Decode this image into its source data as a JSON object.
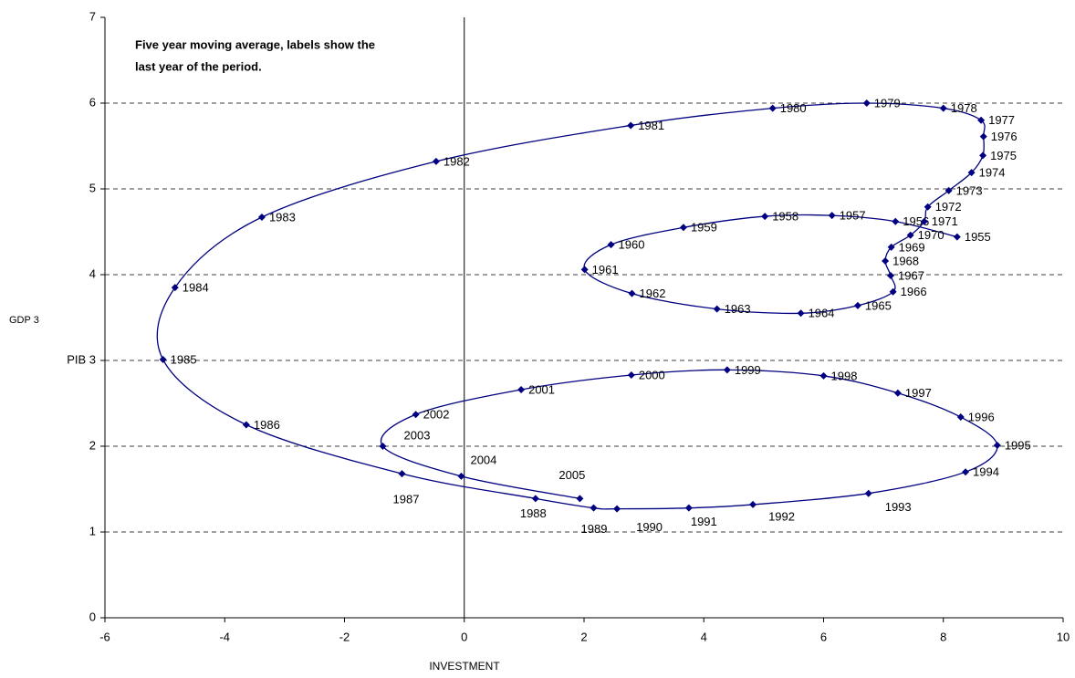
{
  "chart_data": {
    "type": "scatter-line",
    "annotation_lines": [
      "Five year moving average, labels show the",
      "last year of the period."
    ],
    "x_label": "INVESTMENT",
    "y_label": "GDP   3",
    "color": "#000080",
    "grid": true,
    "y_axis_crosses": 0,
    "xlim": [
      -6,
      10
    ],
    "xticks": [
      -6,
      -4,
      -2,
      0,
      2,
      4,
      6,
      8,
      10
    ],
    "ylim": [
      0,
      7
    ],
    "yticks": [
      0,
      1,
      2,
      {
        "value": 3,
        "label": "PIB 3"
      },
      4,
      5,
      6,
      7
    ],
    "labels": [
      "1955",
      "1956",
      "1957",
      "1958",
      "1959",
      "1960",
      "1961",
      "1962",
      "1963",
      "1964",
      "1965",
      "1966",
      "1967",
      "1968",
      "1969",
      "1970",
      "1971",
      "1972",
      "1973",
      "1974",
      "1975",
      "1976",
      "1977",
      "1978",
      "1979",
      "1980",
      "1981",
      "1982",
      "1983",
      "1984",
      "1985",
      "1986",
      "1987",
      "1988",
      "1989",
      "1990",
      "1991",
      "1992",
      "1993",
      "1994",
      "1995",
      "1996",
      "1997",
      "1998",
      "1999",
      "2000",
      "2001",
      "2002",
      "2003",
      "2004",
      "2005"
    ],
    "x": [
      8.23,
      7.2,
      6.14,
      5.02,
      3.66,
      2.45,
      2.01,
      2.8,
      4.22,
      5.62,
      6.57,
      7.16,
      7.12,
      7.03,
      7.13,
      7.45,
      7.68,
      7.74,
      8.09,
      8.47,
      8.66,
      8.67,
      8.63,
      8.0,
      6.72,
      5.15,
      2.78,
      -0.47,
      -3.38,
      -4.83,
      -5.03,
      -3.64,
      -1.04,
      1.19,
      2.16,
      2.55,
      3.75,
      4.82,
      6.75,
      8.37,
      8.9,
      8.29,
      7.24,
      6.0,
      4.39,
      2.79,
      0.95,
      -0.81,
      -1.36,
      -0.05,
      1.93
    ],
    "y": [
      4.44,
      4.62,
      4.69,
      4.68,
      4.55,
      4.35,
      4.06,
      3.78,
      3.6,
      3.55,
      3.64,
      3.8,
      3.99,
      4.16,
      4.32,
      4.46,
      4.62,
      4.79,
      4.98,
      5.19,
      5.39,
      5.61,
      5.8,
      5.94,
      6.0,
      5.94,
      5.74,
      5.32,
      4.67,
      3.85,
      3.01,
      2.25,
      1.68,
      1.39,
      1.28,
      1.27,
      1.28,
      1.32,
      1.45,
      1.7,
      2.01,
      2.34,
      2.62,
      2.82,
      2.89,
      2.83,
      2.66,
      2.37,
      2.0,
      1.65,
      1.39
    ]
  }
}
